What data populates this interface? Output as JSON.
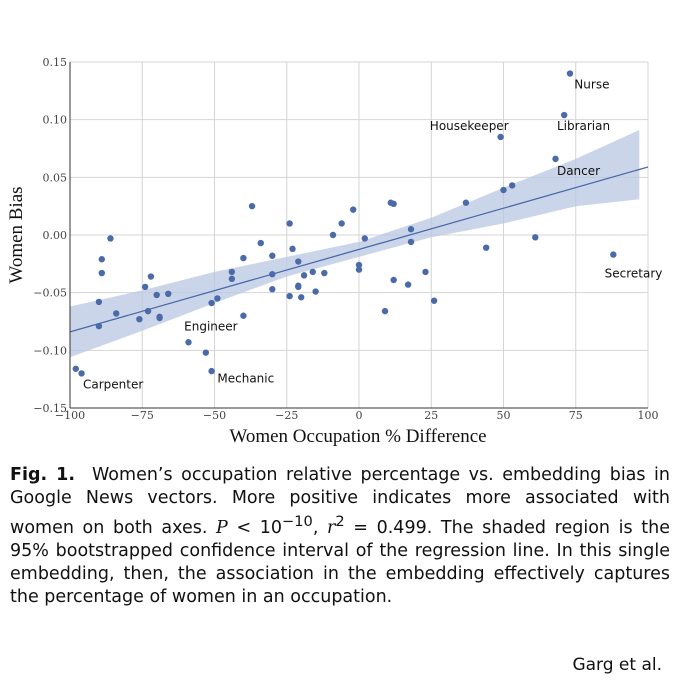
{
  "chart_data": {
    "type": "scatter",
    "xlabel": "Women Occupation % Difference",
    "ylabel": "Women Bias",
    "xlim": [
      -100,
      100
    ],
    "ylim": [
      -0.15,
      0.15
    ],
    "xticks": [
      -100,
      -75,
      -50,
      -25,
      0,
      25,
      50,
      75,
      100
    ],
    "yticks": [
      -0.15,
      -0.1,
      -0.05,
      0.0,
      0.05,
      0.1,
      0.15
    ],
    "xtick_labels": [
      "−100",
      "−75",
      "−50",
      "−25",
      "0",
      "25",
      "50",
      "75",
      "100"
    ],
    "ytick_labels": [
      "−0.15",
      "−0.10",
      "−0.05",
      "0.00",
      "0.05",
      "0.10",
      "0.15"
    ],
    "grid": true,
    "point_color": "#4a6aa8",
    "line_color": "#4a6aa8",
    "band_color": "#b9c7e3",
    "regression": {
      "x": [
        -100,
        100
      ],
      "y": [
        -0.084,
        0.059
      ]
    },
    "confidence_band": {
      "x": [
        -100,
        -75,
        -50,
        -25,
        0,
        25,
        50,
        75,
        97
      ],
      "upper": [
        -0.062,
        -0.048,
        -0.032,
        -0.019,
        -0.006,
        0.015,
        0.041,
        0.066,
        0.091
      ],
      "lower": [
        -0.106,
        -0.083,
        -0.059,
        -0.036,
        -0.019,
        -0.002,
        0.01,
        0.025,
        0.031
      ]
    },
    "points": [
      {
        "x": -98,
        "y": -0.116
      },
      {
        "x": -96,
        "y": -0.12
      },
      {
        "x": -86,
        "y": -0.003
      },
      {
        "x": -89,
        "y": -0.021
      },
      {
        "x": -89,
        "y": -0.033
      },
      {
        "x": -90,
        "y": -0.058
      },
      {
        "x": -90,
        "y": -0.079
      },
      {
        "x": -84,
        "y": -0.068
      },
      {
        "x": -76,
        "y": -0.073
      },
      {
        "x": -74,
        "y": -0.045
      },
      {
        "x": -72,
        "y": -0.036
      },
      {
        "x": -70,
        "y": -0.052
      },
      {
        "x": -69,
        "y": -0.071
      },
      {
        "x": -69,
        "y": -0.072
      },
      {
        "x": -66,
        "y": -0.051
      },
      {
        "x": -73,
        "y": -0.066
      },
      {
        "x": -59,
        "y": -0.093
      },
      {
        "x": -53,
        "y": -0.102
      },
      {
        "x": -51,
        "y": -0.118
      },
      {
        "x": -51,
        "y": -0.059
      },
      {
        "x": -49,
        "y": -0.055
      },
      {
        "x": -44,
        "y": -0.032
      },
      {
        "x": -44,
        "y": -0.038
      },
      {
        "x": -40,
        "y": -0.07
      },
      {
        "x": -40,
        "y": -0.02
      },
      {
        "x": -37,
        "y": 0.025
      },
      {
        "x": -34,
        "y": -0.007
      },
      {
        "x": -30,
        "y": -0.034
      },
      {
        "x": -30,
        "y": -0.018
      },
      {
        "x": -30,
        "y": -0.047
      },
      {
        "x": -24,
        "y": 0.01
      },
      {
        "x": -23,
        "y": -0.012
      },
      {
        "x": -24,
        "y": -0.053
      },
      {
        "x": -21,
        "y": -0.023
      },
      {
        "x": -21,
        "y": -0.045
      },
      {
        "x": -21,
        "y": -0.044
      },
      {
        "x": -20,
        "y": -0.054
      },
      {
        "x": -19,
        "y": -0.035
      },
      {
        "x": -16,
        "y": -0.032
      },
      {
        "x": -15,
        "y": -0.049
      },
      {
        "x": -12,
        "y": -0.033
      },
      {
        "x": -9,
        "y": 0.0
      },
      {
        "x": -6,
        "y": 0.01
      },
      {
        "x": -2,
        "y": 0.022
      },
      {
        "x": 0,
        "y": -0.026
      },
      {
        "x": 0,
        "y": -0.03
      },
      {
        "x": 2,
        "y": -0.003
      },
      {
        "x": 9,
        "y": -0.066
      },
      {
        "x": 12,
        "y": 0.027
      },
      {
        "x": 11,
        "y": 0.028
      },
      {
        "x": 12,
        "y": -0.039
      },
      {
        "x": 17,
        "y": -0.043
      },
      {
        "x": 18,
        "y": 0.005
      },
      {
        "x": 18,
        "y": -0.006
      },
      {
        "x": 23,
        "y": -0.032
      },
      {
        "x": 26,
        "y": -0.057
      },
      {
        "x": 37,
        "y": 0.028
      },
      {
        "x": 44,
        "y": -0.011
      },
      {
        "x": 50,
        "y": 0.039
      },
      {
        "x": 53,
        "y": 0.043
      },
      {
        "x": 61,
        "y": -0.002
      },
      {
        "x": 49,
        "y": 0.085
      },
      {
        "x": 68,
        "y": 0.066
      },
      {
        "x": 71,
        "y": 0.104
      },
      {
        "x": 73,
        "y": 0.14
      },
      {
        "x": 88,
        "y": -0.017
      }
    ],
    "annotations": [
      {
        "text": "Nurse",
        "x": 74.5,
        "y": 0.127
      },
      {
        "text": "Librarian",
        "x": 68.5,
        "y": 0.091
      },
      {
        "text": "Housekeeper",
        "x": 24.5,
        "y": 0.091
      },
      {
        "text": "Dancer",
        "x": 68.5,
        "y": 0.052
      },
      {
        "text": "Secretary",
        "x": 85,
        "y": -0.037
      },
      {
        "text": "Engineer",
        "x": -60.5,
        "y": -0.083
      },
      {
        "text": "Mechanic",
        "x": -49,
        "y": -0.128
      },
      {
        "text": "Carpenter",
        "x": -95.5,
        "y": -0.133
      }
    ]
  },
  "caption": {
    "label": "Fig. 1.",
    "text_before": "Women’s occupation relative percentage vs. embedding bias in Google News vectors. More positive indicates more associated with women on both axes.",
    "p_symbol": "P",
    "p_relation": " < 10",
    "p_exponent": "−10",
    "r_symbol": "r",
    "r_exponent": "2",
    "r_value": " = 0.499.",
    "text_after": "The shaded region is the 95% bootstrapped confidence interval of the regression line. In this single embedding, then, the association in the embedding effectively captures the percentage of women in an occupation."
  },
  "credit": "Garg et al."
}
